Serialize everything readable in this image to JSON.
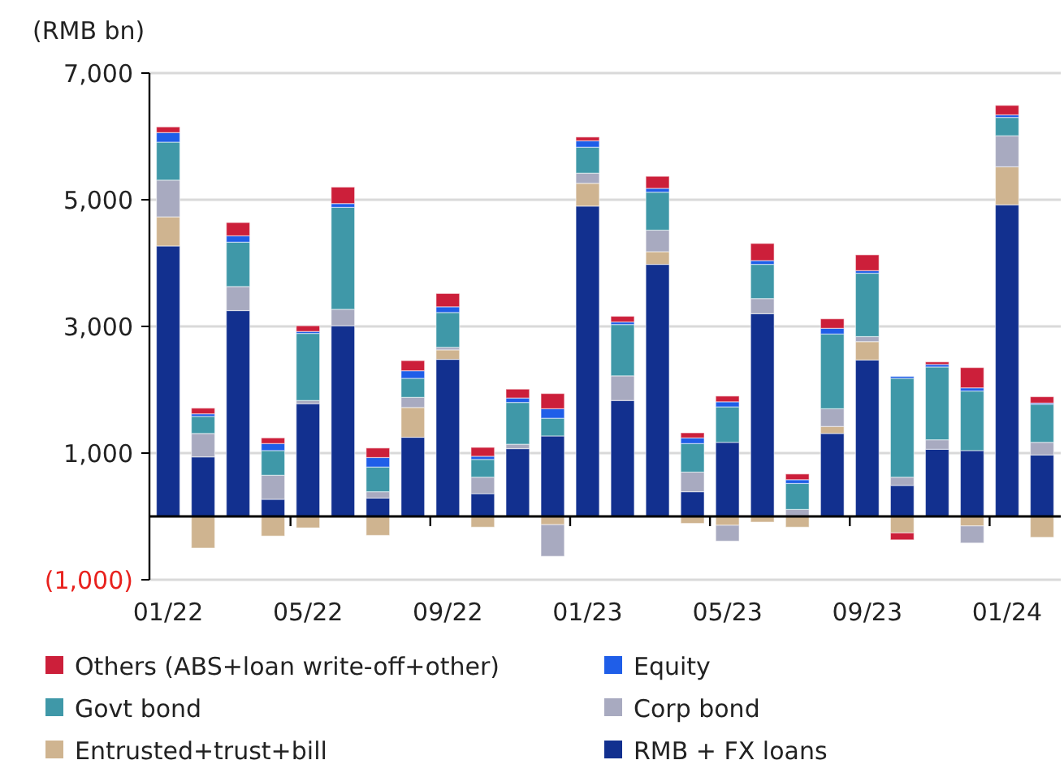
{
  "chart_data": {
    "type": "bar",
    "stacked": true,
    "ylabel": "(RMB bn)",
    "categories": [
      "01/22",
      null,
      null,
      null,
      "05/22",
      null,
      null,
      null,
      "09/22",
      null,
      null,
      null,
      "01/23",
      null,
      null,
      null,
      "05/23",
      null,
      null,
      null,
      "09/23",
      null,
      null,
      null,
      "01/24",
      null
    ],
    "ylim": [
      -1000,
      7000
    ],
    "yticks": [
      {
        "value": -1000,
        "label": "(1,000)"
      },
      {
        "value": 1000,
        "label": "1,000"
      },
      {
        "value": 3000,
        "label": "3,000"
      },
      {
        "value": 5000,
        "label": "5,000"
      },
      {
        "value": 7000,
        "label": "7,000"
      }
    ],
    "grid": "y",
    "legend": "bottom",
    "series": [
      {
        "name": "RMB + FX loans",
        "color": "#12308f",
        "values": [
          4270,
          940,
          3250,
          270,
          1780,
          3010,
          290,
          1250,
          2480,
          360,
          1070,
          1270,
          4900,
          1830,
          3980,
          390,
          1170,
          3200,
          null,
          1310,
          2470,
          490,
          1060,
          1040,
          4920,
          970
        ]
      },
      {
        "name": "Entrusted+trust+bill",
        "color": "#cfb490",
        "values": [
          460,
          -500,
          0,
          -310,
          -180,
          0,
          -300,
          470,
          150,
          -170,
          null,
          -130,
          360,
          0,
          200,
          -110,
          -140,
          -90,
          -170,
          110,
          290,
          -260,
          0,
          -150,
          600,
          -330
        ]
      },
      {
        "name": "Corp bond",
        "color": "#a8aac0",
        "values": [
          580,
          370,
          380,
          380,
          50,
          260,
          100,
          160,
          40,
          260,
          70,
          -500,
          160,
          390,
          340,
          310,
          -250,
          240,
          110,
          280,
          80,
          130,
          150,
          -270,
          490,
          200
        ]
      },
      {
        "name": "Govt bond",
        "color": "#3f98a8",
        "values": [
          600,
          270,
          700,
          390,
          1060,
          1610,
          390,
          300,
          550,
          280,
          660,
          280,
          410,
          810,
          600,
          450,
          560,
          540,
          410,
          1180,
          1000,
          1560,
          1150,
          940,
          290,
          600
        ]
      },
      {
        "name": "Equity",
        "color": "#1f5ee8",
        "values": [
          150,
          40,
          100,
          110,
          30,
          60,
          150,
          120,
          90,
          50,
          70,
          150,
          100,
          40,
          60,
          90,
          80,
          60,
          60,
          90,
          40,
          30,
          40,
          50,
          40,
          20
        ]
      },
      {
        "name": "Others (ABS+loan write-off+other)",
        "color": "#cc1f3a",
        "values": [
          90,
          90,
          210,
          90,
          90,
          260,
          150,
          160,
          210,
          140,
          140,
          240,
          60,
          90,
          190,
          80,
          90,
          270,
          90,
          150,
          250,
          -110,
          40,
          320,
          150,
          100
        ]
      }
    ]
  }
}
